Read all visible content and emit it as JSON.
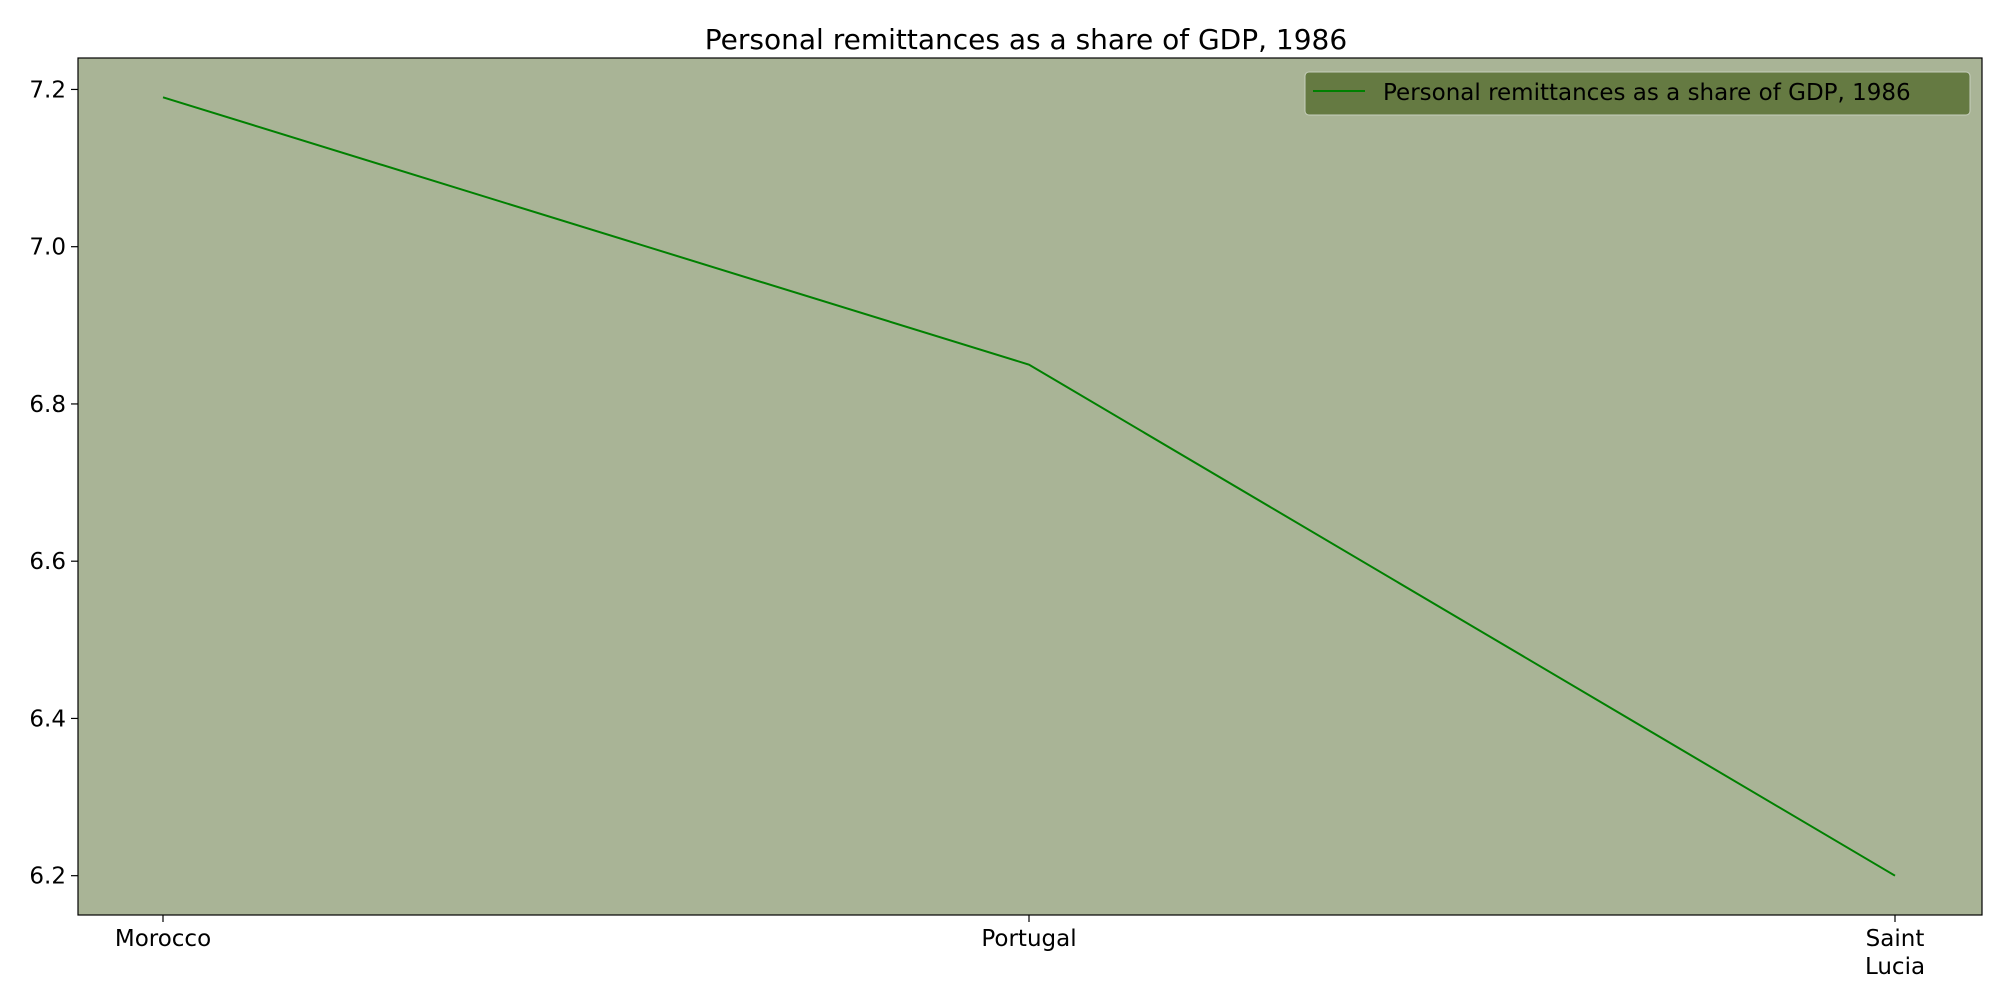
{
  "chart_data": {
    "type": "line",
    "title": "Personal remittances as a share of GDP, 1986",
    "xlabel": "",
    "ylabel": "",
    "categories": [
      "Morocco",
      "Portugal",
      "Saint Lucia"
    ],
    "category_lines": [
      [
        "Morocco"
      ],
      [
        "Portugal"
      ],
      [
        "Saint",
        "Lucia"
      ]
    ],
    "series": [
      {
        "name": "Personal remittances as a share of GDP, 1986",
        "values": [
          7.19,
          6.85,
          6.2
        ],
        "color": "#008000"
      }
    ],
    "ylim": [
      6.15,
      7.24
    ],
    "yticks": [
      6.2,
      6.4,
      6.6,
      6.8,
      7.0,
      7.2
    ],
    "ytick_labels": [
      "6.2",
      "6.4",
      "6.6",
      "6.8",
      "7.0",
      "7.2"
    ],
    "grid": false,
    "legend_position": "top-right",
    "colors": {
      "plot_background": "#a9b496",
      "legend_background": "#657a42",
      "line": "#008000"
    }
  }
}
